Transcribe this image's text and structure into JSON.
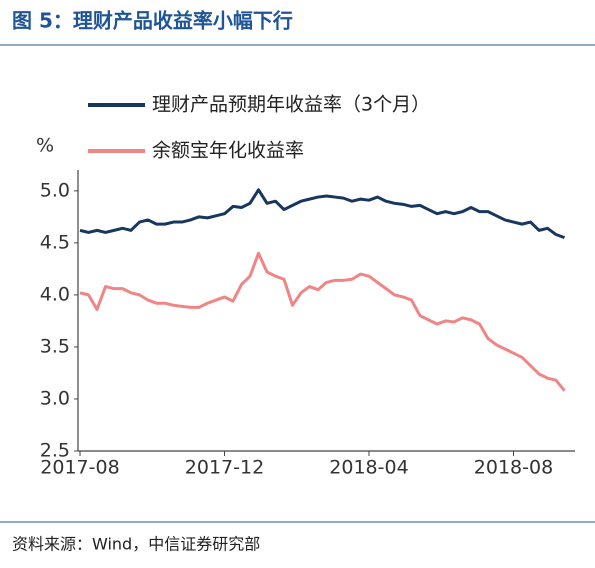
{
  "chart_data": {
    "type": "line",
    "title": "图 5：理财产品收益率小幅下行",
    "y_label": "%",
    "source": "资料来源：Wind，中信证券研究部",
    "categories": [
      "2017-08",
      null,
      null,
      null,
      null,
      null,
      null,
      null,
      null,
      null,
      null,
      null,
      null,
      null,
      null,
      null,
      null,
      "2017-12",
      null,
      null,
      null,
      null,
      null,
      null,
      null,
      null,
      null,
      null,
      null,
      null,
      null,
      null,
      null,
      null,
      "2018-04",
      null,
      null,
      null,
      null,
      null,
      null,
      null,
      null,
      null,
      null,
      null,
      null,
      null,
      null,
      null,
      null,
      "2018-08",
      null,
      null,
      null,
      null,
      null,
      null
    ],
    "series": [
      {
        "name": "理财产品预期年收益率（3个月）",
        "color": "#17375e",
        "values": [
          4.62,
          4.6,
          4.62,
          4.6,
          4.62,
          4.64,
          4.62,
          4.7,
          4.72,
          4.68,
          4.68,
          4.7,
          4.7,
          4.72,
          4.75,
          4.74,
          4.76,
          4.78,
          4.85,
          4.84,
          4.88,
          5.01,
          4.88,
          4.9,
          4.82,
          4.86,
          4.9,
          4.92,
          4.94,
          4.95,
          4.94,
          4.93,
          4.9,
          4.92,
          4.91,
          4.94,
          4.9,
          4.88,
          4.87,
          4.85,
          4.86,
          4.82,
          4.78,
          4.8,
          4.78,
          4.8,
          4.84,
          4.8,
          4.8,
          4.76,
          4.72,
          4.7,
          4.68,
          4.7,
          4.62,
          4.64,
          4.58,
          4.55
        ]
      },
      {
        "name": "余额宝年化收益率",
        "color": "#f08585",
        "values": [
          4.02,
          4.0,
          3.86,
          4.08,
          4.06,
          4.06,
          4.02,
          4.0,
          3.95,
          3.92,
          3.92,
          3.9,
          3.89,
          3.88,
          3.88,
          3.92,
          3.95,
          3.98,
          3.94,
          4.1,
          4.18,
          4.4,
          4.22,
          4.18,
          4.15,
          3.9,
          4.02,
          4.08,
          4.05,
          4.12,
          4.14,
          4.14,
          4.15,
          4.2,
          4.18,
          4.12,
          4.06,
          4.0,
          3.98,
          3.95,
          3.8,
          3.76,
          3.72,
          3.75,
          3.74,
          3.78,
          3.76,
          3.72,
          3.58,
          3.52,
          3.48,
          3.44,
          3.4,
          3.32,
          3.24,
          3.2,
          3.18,
          3.08
        ]
      }
    ],
    "ylim": [
      2.5,
      5.2
    ],
    "yticks": [
      {
        "value": 2.5,
        "label": "2.5"
      },
      {
        "value": 3,
        "label": "3.0"
      },
      {
        "value": 3.5,
        "label": "3.5"
      },
      {
        "value": 4,
        "label": "4.0"
      },
      {
        "value": 4.5,
        "label": "4.5"
      },
      {
        "value": 5,
        "label": "5.0"
      }
    ],
    "grid": false,
    "legend": "top"
  }
}
